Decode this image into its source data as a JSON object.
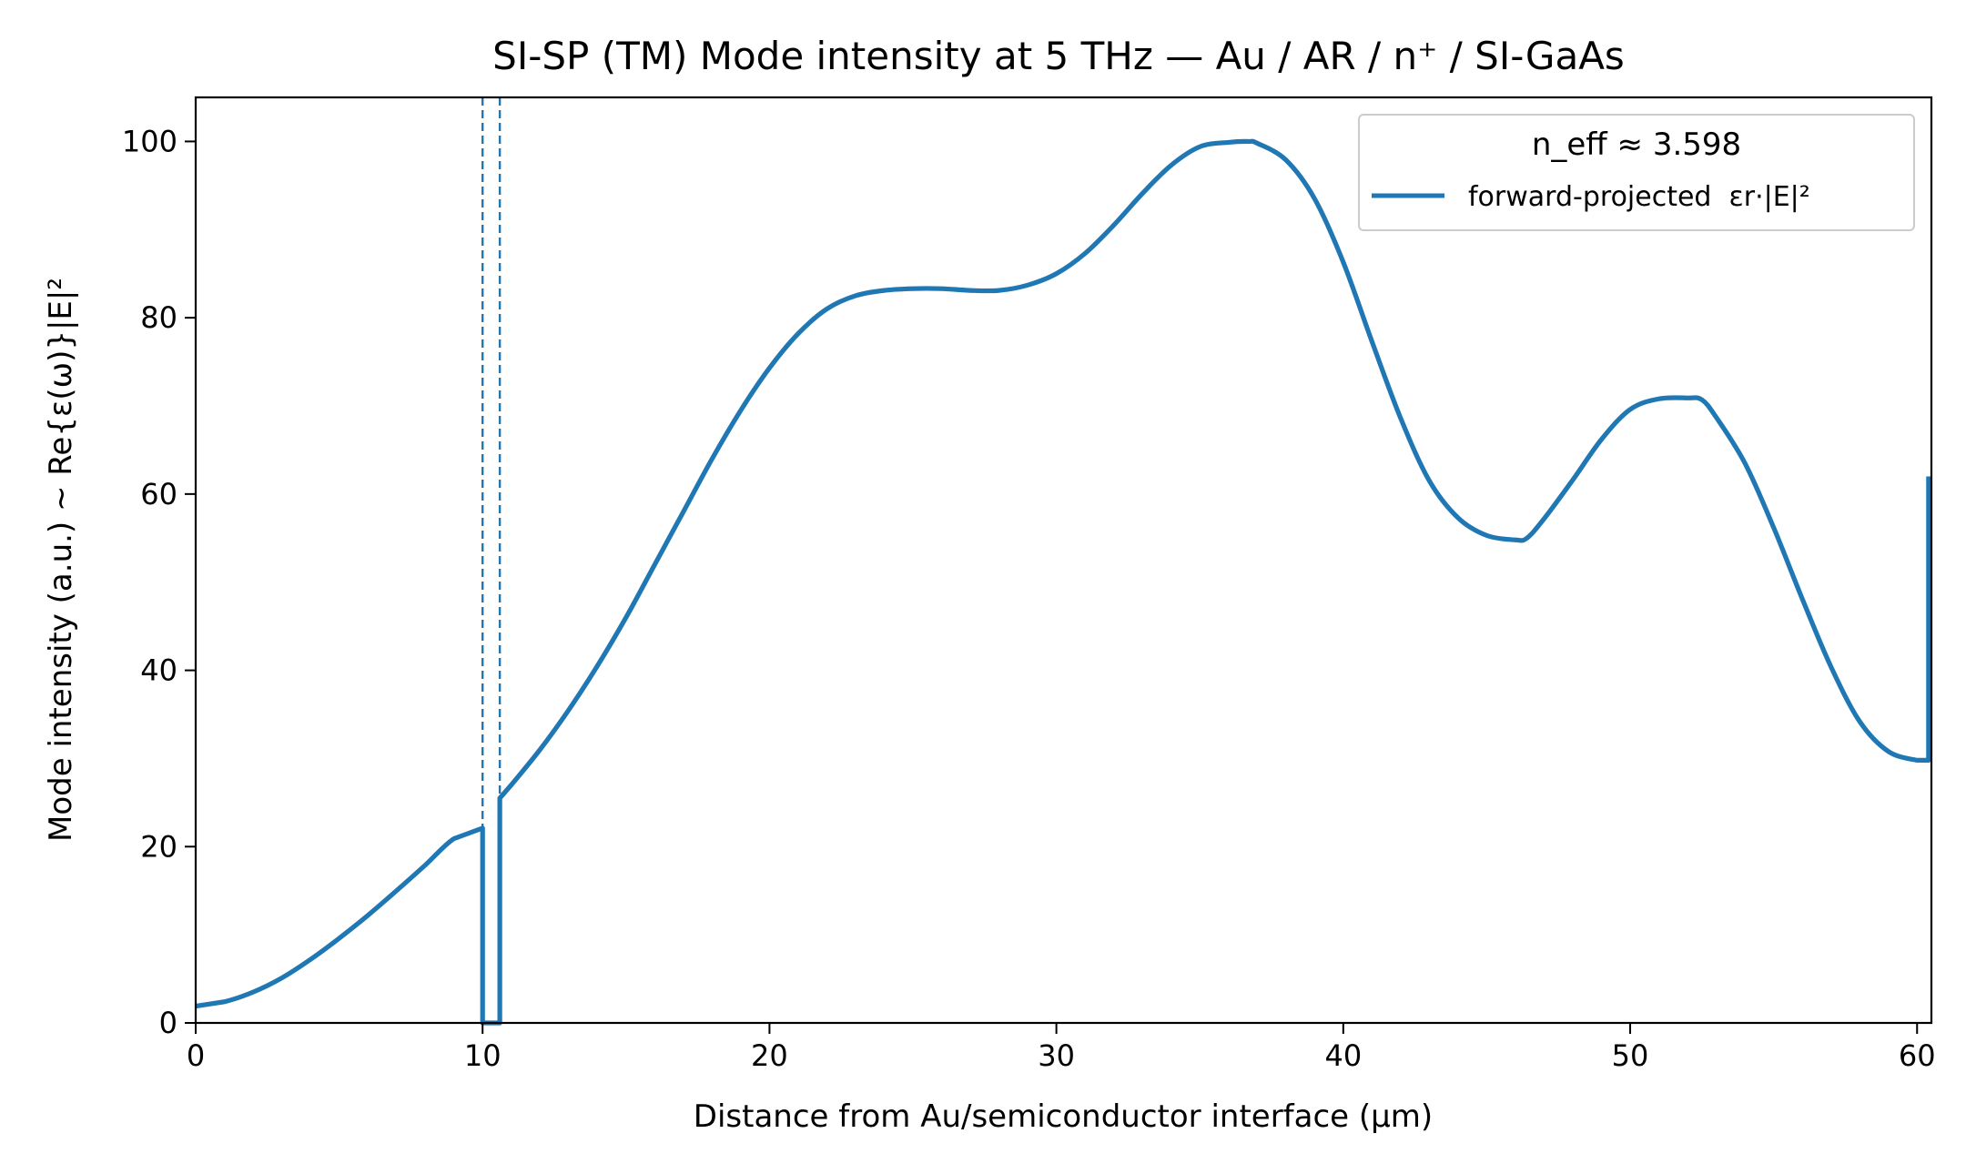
{
  "chart_data": {
    "type": "line",
    "title": "SI-SP (TM)  Mode intensity at 5 THz  —  Au / AR / n⁺ / SI-GaAs",
    "xlabel": "Distance from Au/semiconductor interface  (µm)",
    "ylabel": "Mode intensity (a.u.)  ~  Re{ε(ω)}|E|²",
    "xlim": [
      0,
      60.5
    ],
    "ylim": [
      0,
      105
    ],
    "xticks": [
      0,
      10,
      20,
      30,
      40,
      50,
      60
    ],
    "yticks": [
      0,
      20,
      40,
      60,
      80,
      100
    ],
    "grid": false,
    "legend": {
      "placement": "top-right",
      "title": "n_eff ≈ 3.598",
      "entries": [
        "forward-projected  εr·|E|²"
      ]
    },
    "vlines": [
      {
        "x": 10.0,
        "style": "dashed"
      },
      {
        "x": 10.6,
        "style": "dashed"
      }
    ],
    "series": [
      {
        "name": "forward-projected  εr·|E|²",
        "color": "#1f77b4",
        "x": [
          0,
          1,
          2,
          3,
          4,
          5,
          6,
          7,
          8,
          9,
          10,
          10,
          10.6,
          10.6,
          11,
          12,
          13,
          14,
          15,
          16,
          17,
          18,
          19,
          20,
          21,
          22,
          23,
          24,
          25,
          26,
          27,
          28,
          29,
          30,
          31,
          32,
          33,
          34,
          35,
          36,
          36.7,
          37,
          38,
          39,
          40,
          41,
          42,
          43,
          44,
          45,
          46,
          46.4,
          47,
          48,
          49,
          50,
          51,
          52,
          52.5,
          53,
          54,
          55,
          56,
          57,
          58,
          59,
          60,
          60.4,
          60.4
        ],
        "values": [
          1.9,
          2.4,
          3.5,
          5.1,
          7.2,
          9.6,
          12.2,
          15,
          17.9,
          20.9,
          22.1,
          0,
          0,
          25.5,
          27,
          31,
          35.5,
          40.5,
          46,
          52,
          58,
          64,
          69.5,
          74.3,
          78.2,
          81,
          82.5,
          83.1,
          83.3,
          83.3,
          83.1,
          83.1,
          83.7,
          85,
          87.3,
          90.5,
          94.1,
          97.3,
          99.4,
          99.9,
          100,
          99.8,
          97.9,
          93.5,
          86.3,
          77.3,
          68.6,
          61.5,
          57.3,
          55.3,
          54.8,
          55,
          57.2,
          61.6,
          66.2,
          69.6,
          70.8,
          70.9,
          70.7,
          68.7,
          63.5,
          56.2,
          48.1,
          40.4,
          34.2,
          30.8,
          29.8,
          29.8,
          62
        ]
      }
    ]
  }
}
